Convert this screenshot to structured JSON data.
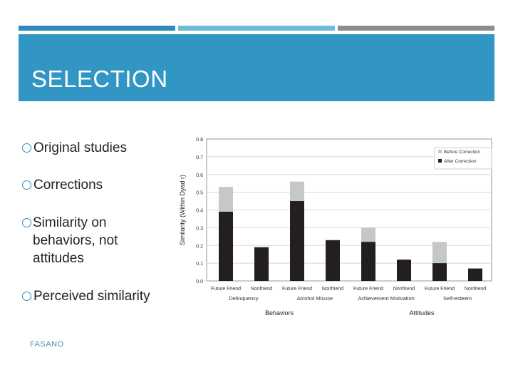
{
  "slide": {
    "title": "SELECTION",
    "bullets": [
      "Original studies",
      "Corrections",
      "Similarity on behaviors, not attitudes",
      "Perceived similarity"
    ],
    "footer": "FASANO",
    "colors": {
      "banner": "#3196c3",
      "accent": "#2e8ab8",
      "gray_bar": "#8a8f93"
    }
  },
  "chart_data": {
    "type": "bar",
    "ylabel": "Similarity (Within Dyad r)",
    "ylim": [
      0,
      0.8
    ],
    "yticks": [
      "0.0",
      "0.1",
      "0.2",
      "0.3",
      "0.4",
      "0.5",
      "0.6",
      "0.7",
      "0.8"
    ],
    "categories": [
      "Future Friend",
      "Nonfriend",
      "Future Friend",
      "Nonfriend",
      "Future Friend",
      "Nonfriend",
      "Future Friend",
      "Nonfriend"
    ],
    "groups": [
      "Delinquency",
      "Alcohol Misuse",
      "Achievement Motivation",
      "Self-esteem"
    ],
    "supergroups": [
      "Behaviors",
      "Attitudes"
    ],
    "series": [
      {
        "name": "Before Correction",
        "values": [
          0.53,
          null,
          0.56,
          null,
          0.3,
          null,
          0.22,
          null
        ],
        "color": "#c6c7c9"
      },
      {
        "name": "After Correction",
        "values": [
          0.39,
          0.19,
          0.45,
          0.23,
          0.22,
          0.12,
          0.1,
          0.07
        ],
        "color": "#231f20"
      }
    ],
    "legend_position": "top-right",
    "grid": true
  }
}
